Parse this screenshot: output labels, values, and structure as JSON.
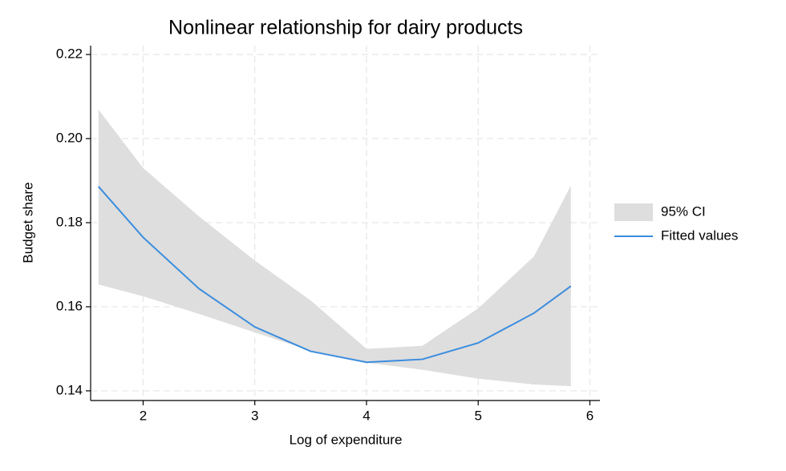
{
  "chart_data": {
    "type": "line",
    "title": "Nonlinear relationship for dairy products",
    "x_label": "Log of expenditure",
    "y_label": "Budget share",
    "x": [
      1.6,
      2,
      2.5,
      3,
      3.5,
      4,
      4.5,
      5,
      5.5,
      5.83
    ],
    "series": [
      {
        "name": "95% CI",
        "color": "#dedede",
        "kind": "band",
        "lower": [
          0.1653,
          0.1625,
          0.1583,
          0.1539,
          0.1495,
          0.1467,
          0.145,
          0.1429,
          0.1415,
          0.1411
        ],
        "upper": [
          0.2069,
          0.193,
          0.1815,
          0.171,
          0.1615,
          0.15,
          0.1507,
          0.1596,
          0.172,
          0.1888
        ]
      },
      {
        "name": "Fitted values",
        "color": "#3a8dde",
        "kind": "line",
        "values": [
          0.1886,
          0.1765,
          0.1643,
          0.1552,
          0.1494,
          0.1468,
          0.1475,
          0.1514,
          0.1585,
          0.1649
        ]
      }
    ],
    "xlim": [
      1.53,
      6.09
    ],
    "xticks": [
      2,
      3,
      4,
      5,
      6
    ],
    "ylim": [
      0.1377,
      0.2221
    ],
    "yticks": [
      {
        "value": 0.14,
        "label": "0.14"
      },
      {
        "value": 0.16,
        "label": "0.16"
      },
      {
        "value": 0.18,
        "label": "0.18"
      },
      {
        "value": 0.2,
        "label": "0.20"
      },
      {
        "value": 0.22,
        "label": "0.22"
      }
    ],
    "grid": true,
    "legend": "right"
  }
}
